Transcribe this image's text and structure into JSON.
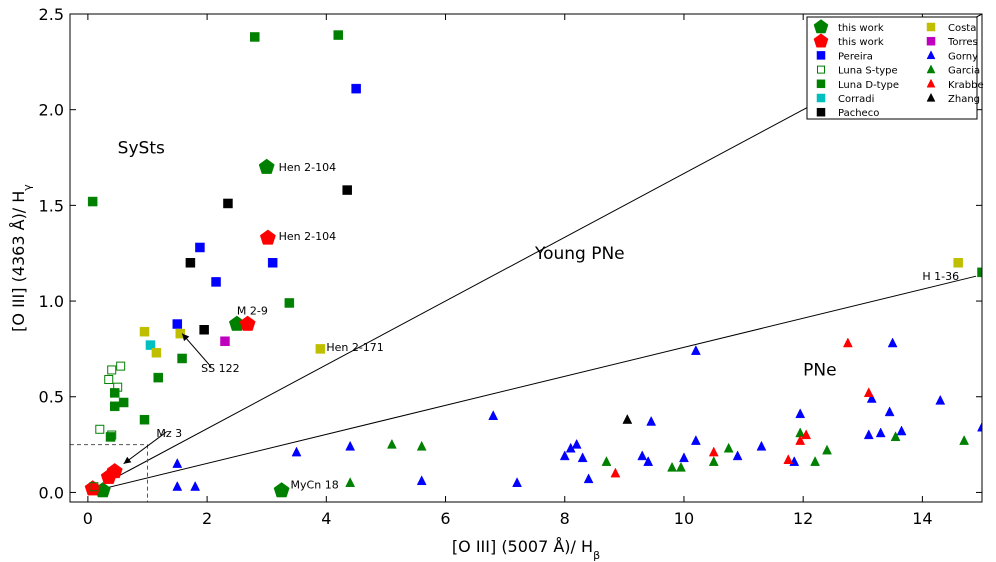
{
  "chart_data": {
    "type": "scatter",
    "xlabel": "[O III] (5007 Å)/ H",
    "xlabel_sub": "β",
    "ylabel": "[O III] (4363 Å)/ H",
    "ylabel_sub": "γ",
    "xlim": [
      -0.3,
      15.0
    ],
    "ylim": [
      -0.05,
      2.5
    ],
    "xticks": [
      0,
      2,
      4,
      6,
      8,
      10,
      12,
      14
    ],
    "yticks": [
      0.0,
      0.5,
      1.0,
      1.5,
      2.0,
      2.5
    ],
    "xtick_labels": [
      "0",
      "2",
      "4",
      "6",
      "8",
      "10",
      "12",
      "14"
    ],
    "ytick_labels": [
      "0.0",
      "0.5",
      "1.0",
      "1.5",
      "2.0",
      "2.5"
    ],
    "region_labels": [
      {
        "text": "SySts",
        "x": 0.5,
        "y": 1.77
      },
      {
        "text": "Young PNe",
        "x": 7.5,
        "y": 1.22
      },
      {
        "text": "PNe",
        "x": 12.0,
        "y": 0.61
      }
    ],
    "lines": [
      {
        "name": "upper-boundary",
        "points": [
          [
            0,
            0
          ],
          [
            15.0,
            2.5
          ]
        ]
      },
      {
        "name": "lower-boundary",
        "points": [
          [
            0,
            0
          ],
          [
            14.9,
            1.13
          ]
        ]
      }
    ],
    "dashed_box": {
      "x": 1.0,
      "y": 0.25
    },
    "annotations": [
      {
        "text": "Hen 2-104",
        "x": 3.2,
        "y": 1.68
      },
      {
        "text": "Hen 2-104",
        "x": 3.2,
        "y": 1.32
      },
      {
        "text": "M 2-9",
        "x": 2.5,
        "y": 0.93
      },
      {
        "text": "Hen 2-171",
        "x": 4.0,
        "y": 0.74
      },
      {
        "text": "SS 122",
        "x": 1.9,
        "y": 0.63,
        "arrow_to": [
          1.58,
          0.83
        ]
      },
      {
        "text": "Mz 3",
        "x": 1.15,
        "y": 0.29,
        "arrow_to": [
          0.6,
          0.15
        ]
      },
      {
        "text": "MyCn 18",
        "x": 3.4,
        "y": 0.02
      },
      {
        "text": "H 1-36",
        "x": 14.0,
        "y": 1.11
      }
    ],
    "series": [
      {
        "name": "this work",
        "marker": "pentagon",
        "color": "#008000",
        "points": [
          [
            3.0,
            1.7
          ],
          [
            2.5,
            0.88
          ],
          [
            3.25,
            0.01
          ],
          [
            0.25,
            0.01
          ]
        ]
      },
      {
        "name": "this work",
        "marker": "pentagon",
        "color": "#ff0000",
        "points": [
          [
            3.02,
            1.33
          ],
          [
            2.68,
            0.88
          ],
          [
            0.45,
            0.11
          ],
          [
            0.35,
            0.08
          ],
          [
            0.08,
            0.02
          ]
        ]
      },
      {
        "name": "Pereira",
        "marker": "square",
        "color": "#0000ff",
        "points": [
          [
            4.5,
            2.11
          ],
          [
            1.88,
            1.28
          ],
          [
            3.1,
            1.2
          ],
          [
            2.15,
            1.1
          ],
          [
            1.5,
            0.88
          ]
        ]
      },
      {
        "name": "Luna S-type",
        "marker": "square-open",
        "color": "#008000",
        "points": [
          [
            0.2,
            0.33
          ],
          [
            0.35,
            0.59
          ],
          [
            0.4,
            0.64
          ],
          [
            0.55,
            0.66
          ],
          [
            0.5,
            0.55
          ],
          [
            0.4,
            0.3
          ],
          [
            0.1,
            0.03
          ]
        ]
      },
      {
        "name": "Luna D-type",
        "marker": "square",
        "color": "#008000",
        "points": [
          [
            2.8,
            2.38
          ],
          [
            4.2,
            2.39
          ],
          [
            0.08,
            1.52
          ],
          [
            3.38,
            0.99
          ],
          [
            1.58,
            0.7
          ],
          [
            1.18,
            0.6
          ],
          [
            0.45,
            0.52
          ],
          [
            0.6,
            0.47
          ],
          [
            0.45,
            0.45
          ],
          [
            0.95,
            0.38
          ],
          [
            0.38,
            0.29
          ],
          [
            15.0,
            1.15
          ]
        ]
      },
      {
        "name": "Corradi",
        "marker": "square",
        "color": "#00bfbf",
        "points": [
          [
            1.05,
            0.77
          ]
        ]
      },
      {
        "name": "Pacheco",
        "marker": "square",
        "color": "#000000",
        "points": [
          [
            4.35,
            1.58
          ],
          [
            2.35,
            1.51
          ],
          [
            1.72,
            1.2
          ],
          [
            1.95,
            0.85
          ]
        ]
      },
      {
        "name": "Costa",
        "marker": "square",
        "color": "#bfbf00",
        "points": [
          [
            0.95,
            0.84
          ],
          [
            1.55,
            0.83
          ],
          [
            1.15,
            0.73
          ],
          [
            3.9,
            0.75
          ],
          [
            14.6,
            1.2
          ]
        ]
      },
      {
        "name": "Torres",
        "marker": "square",
        "color": "#bf00bf",
        "points": [
          [
            2.3,
            0.79
          ]
        ]
      },
      {
        "name": "Gorny",
        "marker": "triangle",
        "color": "#0000ff",
        "points": [
          [
            1.5,
            0.15
          ],
          [
            1.5,
            0.03
          ],
          [
            1.8,
            0.03
          ],
          [
            3.5,
            0.21
          ],
          [
            4.4,
            0.24
          ],
          [
            5.6,
            0.06
          ],
          [
            6.8,
            0.4
          ],
          [
            7.2,
            0.05
          ],
          [
            8.0,
            0.19
          ],
          [
            8.1,
            0.23
          ],
          [
            8.2,
            0.25
          ],
          [
            8.3,
            0.18
          ],
          [
            8.4,
            0.07
          ],
          [
            9.3,
            0.19
          ],
          [
            9.4,
            0.16
          ],
          [
            9.45,
            0.37
          ],
          [
            10.0,
            0.18
          ],
          [
            10.2,
            0.27
          ],
          [
            10.2,
            0.74
          ],
          [
            10.9,
            0.19
          ],
          [
            11.3,
            0.24
          ],
          [
            11.85,
            0.16
          ],
          [
            11.95,
            0.41
          ],
          [
            13.1,
            0.3
          ],
          [
            13.15,
            0.49
          ],
          [
            13.3,
            0.31
          ],
          [
            13.45,
            0.42
          ],
          [
            13.5,
            0.78
          ],
          [
            13.65,
            0.32
          ],
          [
            14.3,
            0.48
          ],
          [
            15.0,
            0.34
          ]
        ]
      },
      {
        "name": "Garcia",
        "marker": "triangle",
        "color": "#008000",
        "points": [
          [
            4.4,
            0.05
          ],
          [
            5.1,
            0.25
          ],
          [
            5.6,
            0.24
          ],
          [
            8.7,
            0.16
          ],
          [
            9.8,
            0.13
          ],
          [
            9.95,
            0.13
          ],
          [
            10.5,
            0.16
          ],
          [
            10.75,
            0.23
          ],
          [
            11.95,
            0.31
          ],
          [
            12.2,
            0.16
          ],
          [
            12.4,
            0.22
          ],
          [
            13.55,
            0.29
          ],
          [
            14.7,
            0.27
          ]
        ]
      },
      {
        "name": "Krabbe",
        "marker": "triangle",
        "color": "#ff0000",
        "points": [
          [
            8.85,
            0.1
          ],
          [
            10.5,
            0.21
          ],
          [
            11.75,
            0.17
          ],
          [
            11.95,
            0.27
          ],
          [
            12.05,
            0.3
          ],
          [
            12.75,
            0.78
          ],
          [
            13.1,
            0.52
          ]
        ]
      },
      {
        "name": "Zhang",
        "marker": "triangle",
        "color": "#000000",
        "points": [
          [
            9.05,
            0.38
          ]
        ]
      }
    ],
    "legend": {
      "placement": "top-right",
      "entries": [
        {
          "label": "this work",
          "marker": "pentagon",
          "color": "#008000"
        },
        {
          "label": "this work",
          "marker": "pentagon",
          "color": "#ff0000"
        },
        {
          "label": "Pereira",
          "marker": "square",
          "color": "#0000ff"
        },
        {
          "label": "Luna S-type",
          "marker": "square-open",
          "color": "#008000"
        },
        {
          "label": "Luna D-type",
          "marker": "square",
          "color": "#008000"
        },
        {
          "label": "Corradi",
          "marker": "square",
          "color": "#00bfbf"
        },
        {
          "label": "Pacheco",
          "marker": "square",
          "color": "#000000"
        },
        {
          "label": "Costa",
          "marker": "square",
          "color": "#bfbf00"
        },
        {
          "label": "Torres",
          "marker": "square",
          "color": "#bf00bf"
        },
        {
          "label": "Gorny",
          "marker": "triangle",
          "color": "#0000ff"
        },
        {
          "label": "Garcia",
          "marker": "triangle",
          "color": "#008000"
        },
        {
          "label": "Krabbe",
          "marker": "triangle",
          "color": "#ff0000"
        },
        {
          "label": "Zhang",
          "marker": "triangle",
          "color": "#000000"
        }
      ]
    }
  }
}
